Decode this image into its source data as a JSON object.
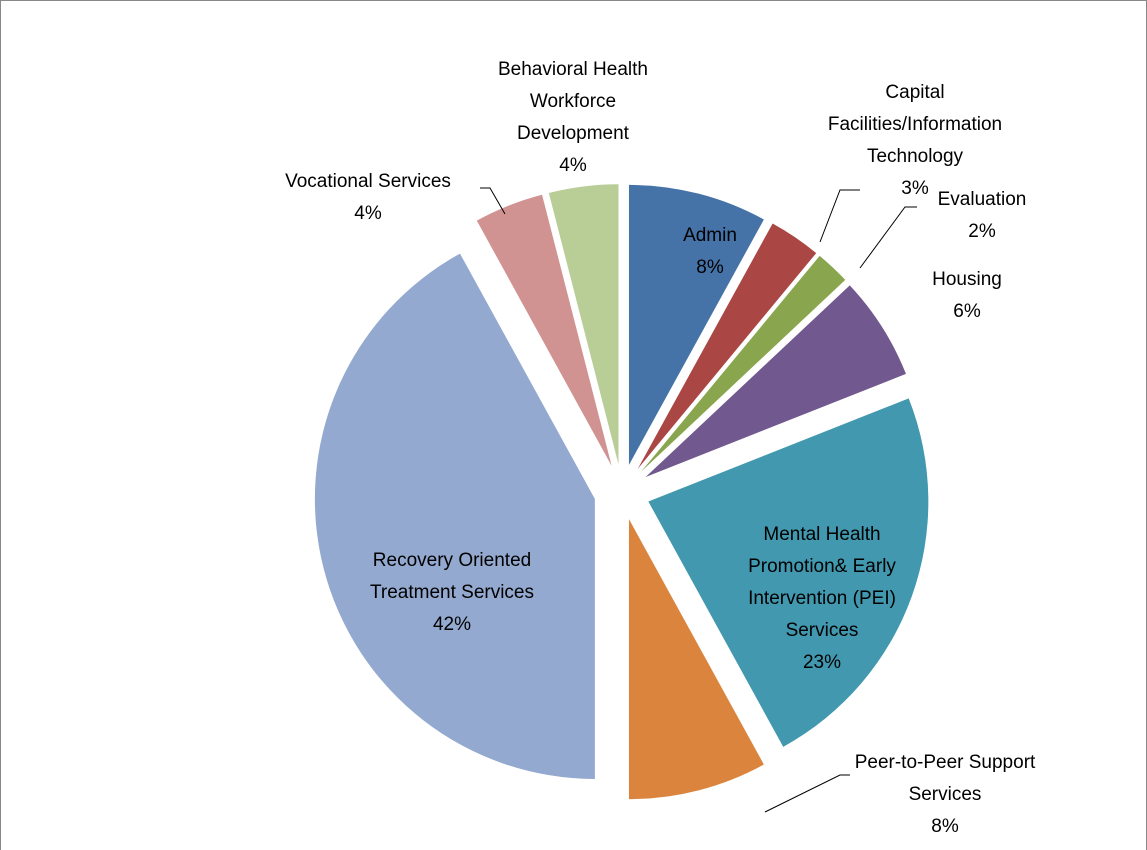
{
  "chart_data": {
    "type": "pie",
    "categories": [
      "Admin",
      "Capital Facilities/Information Technology",
      "Evaluation",
      "Housing",
      "Mental Health Promotion& Early Intervention (PEI) Services",
      "Peer-to-Peer Support Services",
      "Recovery Oriented Treatment Services",
      "Vocational Services",
      "Behavioral Health Workforce Development"
    ],
    "values": [
      8,
      3,
      2,
      6,
      23,
      8,
      42,
      4,
      4
    ],
    "value_labels": [
      "8%",
      "3%",
      "2%",
      "6%",
      "23%",
      "8%",
      "42%",
      "4%",
      "4%"
    ],
    "colors": [
      "#4572a7",
      "#aa4643",
      "#89a54e",
      "#71588f",
      "#4198af",
      "#db843d",
      "#93a9cf",
      "#d19392",
      "#b9cd96"
    ]
  }
}
